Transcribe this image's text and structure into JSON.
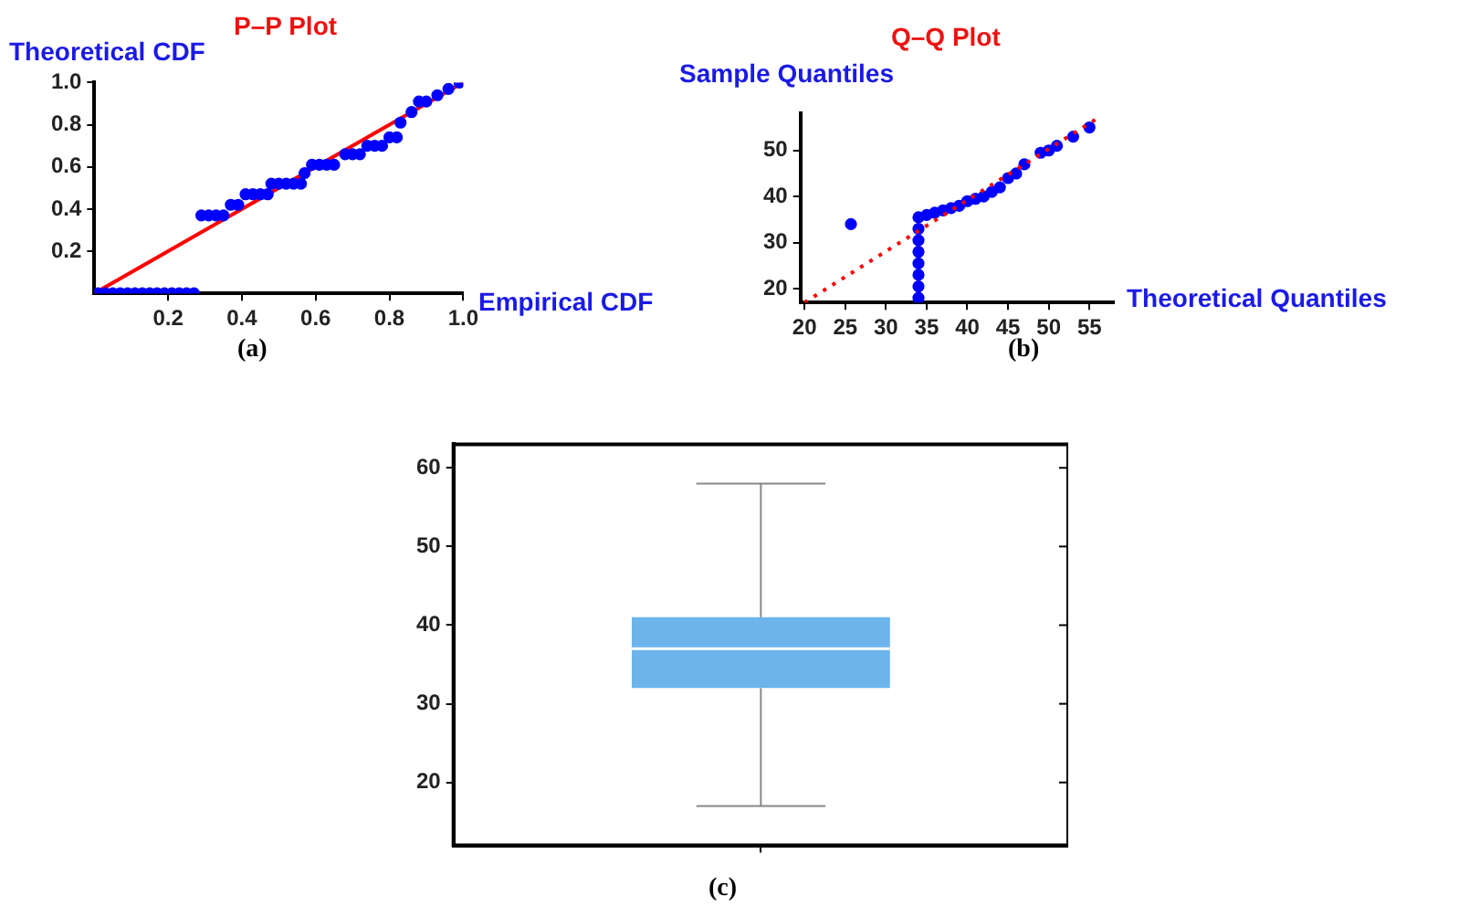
{
  "chart_data": [
    {
      "type": "scatter",
      "title": "P–P Plot",
      "xlabel": "Empirical CDF",
      "ylabel": "Theoretical CDF",
      "xlim": [
        0,
        1
      ],
      "ylim": [
        0,
        1
      ],
      "xticks": [
        0.2,
        0.4,
        0.6,
        0.8,
        {
          "value": 1,
          "label": "1.0"
        }
      ],
      "yticks": [
        0.2,
        0.4,
        0.6,
        0.8,
        {
          "value": 1,
          "label": "1.0"
        }
      ],
      "grid": false,
      "annotations": [
        "(a)"
      ],
      "series": [
        {
          "type": "scatter",
          "marker": "circle",
          "color": "#0000ff",
          "x": [
            0.01,
            0.03,
            0.05,
            0.07,
            0.09,
            0.11,
            0.13,
            0.15,
            0.17,
            0.19,
            0.21,
            0.23,
            0.25,
            0.27,
            0.29,
            0.31,
            0.33,
            0.35,
            0.37,
            0.39,
            0.41,
            0.43,
            0.45,
            0.47,
            0.48,
            0.5,
            0.52,
            0.54,
            0.56,
            0.57,
            0.59,
            0.61,
            0.63,
            0.65,
            0.68,
            0.7,
            0.72,
            0.74,
            0.76,
            0.78,
            0.8,
            0.82,
            0.83,
            0.86,
            0.88,
            0.9,
            0.93,
            0.96,
            0.99
          ],
          "values": [
            0,
            0,
            0,
            0,
            0,
            0,
            0,
            0,
            0,
            0,
            0,
            0,
            0,
            0,
            0.37,
            0.37,
            0.37,
            0.37,
            0.42,
            0.42,
            0.47,
            0.47,
            0.47,
            0.47,
            0.52,
            0.52,
            0.52,
            0.52,
            0.52,
            0.57,
            0.61,
            0.61,
            0.61,
            0.61,
            0.66,
            0.66,
            0.66,
            0.7,
            0.7,
            0.7,
            0.74,
            0.74,
            0.81,
            0.86,
            0.91,
            0.91,
            0.94,
            0.97,
            1
          ]
        },
        {
          "type": "line",
          "color": "#ff0000",
          "x": [
            0,
            1
          ],
          "values": [
            0,
            1
          ],
          "line_style": "solid",
          "marker": "none"
        }
      ]
    },
    {
      "type": "scatter",
      "title": "Q–Q Plot",
      "xlabel": "Theoretical Quantiles",
      "ylabel": "Sample Quantiles",
      "xlim": [
        19.5,
        58
      ],
      "ylim": [
        17,
        58
      ],
      "xticks": [
        20,
        25,
        30,
        35,
        40,
        45,
        50,
        55
      ],
      "yticks": [
        20,
        30,
        40,
        50
      ],
      "grid": false,
      "annotations": [
        "(b)"
      ],
      "series": [
        {
          "type": "line",
          "color": "#ff0000",
          "x": [
            20,
            56
          ],
          "values": [
            17,
            57
          ],
          "line_style": "dotted",
          "marker": "none"
        },
        {
          "type": "scatter",
          "marker": "circle",
          "color": "#0000ff",
          "x": [
            25.7,
            34,
            34,
            34,
            34,
            34,
            34,
            34,
            34,
            35,
            36,
            37,
            38,
            39,
            40,
            41,
            42,
            43,
            44,
            45,
            46,
            47,
            49,
            50,
            51,
            53,
            55
          ],
          "values": [
            34,
            18,
            20.5,
            23,
            25.5,
            28,
            30.5,
            33,
            35.5,
            36,
            36.5,
            37,
            37.5,
            38,
            39,
            39.5,
            40,
            41,
            42,
            44,
            45,
            47,
            49.5,
            50,
            51,
            53,
            55
          ]
        }
      ]
    },
    {
      "type": "box",
      "categories": [
        null
      ],
      "ylim": [
        12,
        63
      ],
      "yticks": [
        20,
        30,
        40,
        50,
        60
      ],
      "tick_labels": "y",
      "grid": false,
      "color": "#6cb4ea",
      "annotations": [
        "(c)"
      ],
      "boxes": [
        {
          "low": 17,
          "q1": 32,
          "median": 37,
          "q3": 41,
          "high": 58
        }
      ]
    }
  ]
}
